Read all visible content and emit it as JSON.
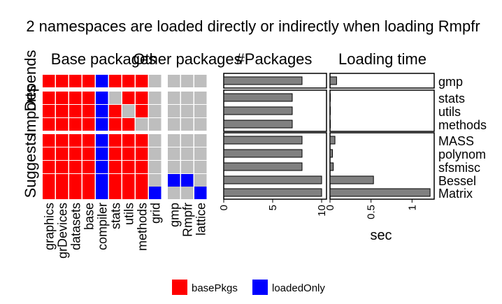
{
  "chart_data": [
    {
      "type": "heatmap",
      "title": "2 namespaces are loaded directly or indirectly when loading Rmpfr",
      "panels": [
        "Base packages",
        "Other packages"
      ],
      "row_groups": [
        "Depends",
        "Imports",
        "Suggests"
      ],
      "rows": [
        "gmp",
        "stats",
        "utils",
        "methods",
        "MASS",
        "polynom",
        "sfsmisc",
        "Bessel",
        "Matrix"
      ],
      "columns": {
        "Base packages": [
          "graphics",
          "grDevices",
          "datasets",
          "base",
          "compiler",
          "stats",
          "utils",
          "methods",
          "grid"
        ],
        "Other packages": [
          "gmp",
          "Rmpfr",
          "lattice"
        ]
      },
      "cells": {
        "gmp": [
          "basePkgs",
          "basePkgs",
          "basePkgs",
          "basePkgs",
          "loadedOnly",
          "basePkgs",
          "basePkgs",
          "basePkgs",
          "",
          "",
          "",
          ""
        ],
        "stats": [
          "basePkgs",
          "basePkgs",
          "basePkgs",
          "basePkgs",
          "loadedOnly",
          "",
          "basePkgs",
          "basePkgs",
          "",
          "",
          "",
          ""
        ],
        "utils": [
          "basePkgs",
          "basePkgs",
          "basePkgs",
          "basePkgs",
          "loadedOnly",
          "basePkgs",
          "",
          "basePkgs",
          "",
          "",
          "",
          ""
        ],
        "methods": [
          "basePkgs",
          "basePkgs",
          "basePkgs",
          "basePkgs",
          "loadedOnly",
          "basePkgs",
          "basePkgs",
          "",
          "",
          "",
          "",
          ""
        ],
        "MASS": [
          "basePkgs",
          "basePkgs",
          "basePkgs",
          "basePkgs",
          "loadedOnly",
          "basePkgs",
          "basePkgs",
          "basePkgs",
          "",
          "",
          "",
          ""
        ],
        "polynom": [
          "basePkgs",
          "basePkgs",
          "basePkgs",
          "basePkgs",
          "loadedOnly",
          "basePkgs",
          "basePkgs",
          "basePkgs",
          "",
          "",
          "",
          ""
        ],
        "sfsmisc": [
          "basePkgs",
          "basePkgs",
          "basePkgs",
          "basePkgs",
          "loadedOnly",
          "basePkgs",
          "basePkgs",
          "basePkgs",
          "",
          "",
          "",
          ""
        ],
        "Bessel": [
          "basePkgs",
          "basePkgs",
          "basePkgs",
          "basePkgs",
          "loadedOnly",
          "basePkgs",
          "basePkgs",
          "basePkgs",
          "",
          "loadedOnly",
          "loadedOnly",
          ""
        ],
        "Matrix": [
          "basePkgs",
          "basePkgs",
          "basePkgs",
          "basePkgs",
          "loadedOnly",
          "basePkgs",
          "basePkgs",
          "basePkgs",
          "loadedOnly",
          "",
          "",
          "loadedOnly"
        ]
      },
      "legend": [
        {
          "label": "basePkgs",
          "color": "#ff0000"
        },
        {
          "label": "loadedOnly",
          "color": "#0000ff"
        }
      ],
      "empty_color": "#bebebe",
      "legend_placement": "bottom"
    },
    {
      "type": "bar",
      "title": "#Packages",
      "orientation": "horizontal",
      "categories": [
        "gmp",
        "stats",
        "utils",
        "methods",
        "MASS",
        "polynom",
        "sfsmisc",
        "Bessel",
        "Matrix"
      ],
      "values": [
        8,
        7,
        7,
        7,
        8,
        8,
        8,
        10,
        10
      ],
      "xlim": [
        0,
        10.5
      ],
      "xticks": [
        "0",
        "5",
        "10"
      ],
      "bar_color": "#808080"
    },
    {
      "type": "bar",
      "title": "Loading time",
      "orientation": "horizontal",
      "categories": [
        "gmp",
        "stats",
        "utils",
        "methods",
        "MASS",
        "polynom",
        "sfsmisc",
        "Bessel",
        "Matrix"
      ],
      "values": [
        0.08,
        0.0,
        0.0,
        0.0,
        0.06,
        0.03,
        0.04,
        0.53,
        1.22
      ],
      "xlim": [
        0,
        1.27
      ],
      "xticks": [
        "0",
        "0.5",
        "1"
      ],
      "xlabel": "sec",
      "bar_color": "#808080"
    }
  ]
}
